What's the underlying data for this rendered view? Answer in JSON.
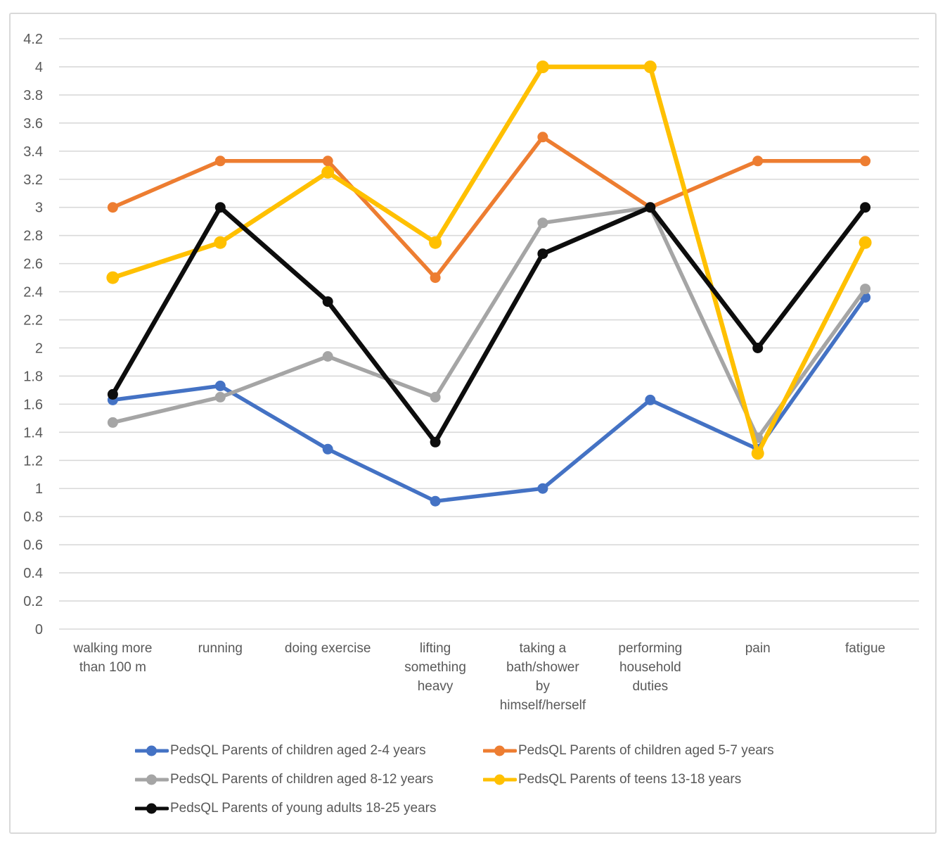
{
  "chart_data": {
    "type": "line",
    "title": "",
    "xlabel": "",
    "ylabel": "",
    "categories": [
      "walking more than 100 m",
      "running",
      "doing exercise",
      "lifting something heavy",
      "taking a bath/shower by himself/herself",
      "performing household duties",
      "pain",
      "fatigue"
    ],
    "x_tick_labels": [
      "walking more\nthan 100 m",
      "running",
      "doing exercise",
      "lifting\nsomething\nheavy",
      "taking a\nbath/shower\nby\nhimself/herself",
      "performing\nhousehold\nduties",
      "pain",
      "fatigue"
    ],
    "series": [
      {
        "name": "PedsQL Parents of children aged 2-4 years",
        "color": "#4472C4",
        "values": [
          1.63,
          1.73,
          1.28,
          0.91,
          1.0,
          1.63,
          1.28,
          2.36
        ]
      },
      {
        "name": "PedsQL Parents of children aged 5-7 years",
        "color": "#ED7D31",
        "values": [
          3.0,
          3.33,
          3.33,
          2.5,
          3.5,
          3.0,
          3.33,
          3.33
        ]
      },
      {
        "name": "PedsQL Parents of children aged 8-12 years",
        "color": "#A5A5A5",
        "values": [
          1.47,
          1.65,
          1.94,
          1.65,
          2.89,
          3.0,
          1.36,
          2.42
        ]
      },
      {
        "name": "PedsQL Parents of teens 13-18 years",
        "color": "#FFC000",
        "values": [
          2.5,
          2.75,
          3.25,
          2.75,
          4.0,
          4.0,
          1.25,
          2.75
        ]
      },
      {
        "name": "PedsQL Parents of young adults 18-25 years",
        "color": "#0D0D0D",
        "values": [
          1.67,
          3.0,
          2.33,
          1.33,
          2.67,
          3.0,
          2.0,
          3.0
        ]
      }
    ],
    "ylim": [
      0,
      4.2
    ],
    "y_tick_step": 0.2,
    "y_tick_labels": [
      "0",
      "0.2",
      "0.4",
      "0.6",
      "0.8",
      "1",
      "1.2",
      "1.4",
      "1.6",
      "1.8",
      "2",
      "2.2",
      "2.4",
      "2.6",
      "2.8",
      "3",
      "3.2",
      "3.4",
      "3.6",
      "3.8",
      "4",
      "4.2"
    ],
    "grid": true,
    "legend_position": "bottom"
  },
  "styles": {
    "grid_color": "#D9D9D9",
    "axis_text_color": "#595959",
    "frame_border_color": "#D9D9D9",
    "background": "#FFFFFF"
  }
}
